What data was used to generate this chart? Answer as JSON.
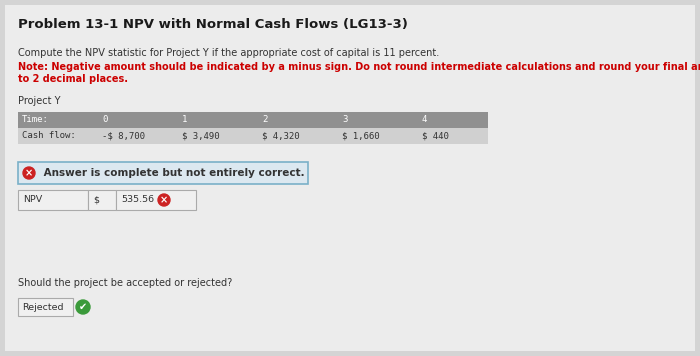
{
  "title": "Problem 13-1 NPV with Normal Cash Flows (LG13-3)",
  "body_text_1": "Compute the NPV statistic for Project Y if the appropriate cost of capital is 11 percent.",
  "note_line1": "Note: Negative amount should be indicated by a minus sign. Do not round intermediate calculations and round your final answer",
  "note_line2": "to 2 decimal places.",
  "project_label": "Project Y",
  "time_label": "Time:",
  "time_values": [
    "0",
    "1",
    "2",
    "3",
    "4"
  ],
  "cashflow_label": "Cash flow:",
  "cashflow_values": [
    "-$ 8,700",
    "$ 3,490",
    "$ 4,320",
    "$ 1,660",
    "$ 440"
  ],
  "answer_box_text": " Answer is complete but not entirely correct.",
  "npv_label": "NPV",
  "dollar_sign": "$",
  "npv_value": "535.56",
  "question_text": "Should the project be accepted or rejected?",
  "answer_label": "Rejected",
  "bg_color": "#d4d4d4",
  "content_bg": "#ececec",
  "table_header_bg": "#909090",
  "table_row_bg": "#d0d0d0",
  "answer_box_bg": "#dce8f0",
  "answer_box_border": "#7ab0c8",
  "npv_row_bg": "#f0f0f0",
  "npv_border": "#aaaaaa",
  "rejected_bg": "#f0f0f0",
  "rejected_border": "#aaaaaa",
  "title_color": "#1a1a1a",
  "note_color": "#cc0000",
  "body_color": "#333333",
  "white": "#ffffff",
  "title_fontsize": 9.5,
  "body_fontsize": 7.0,
  "table_fontsize": 6.5,
  "small_fontsize": 6.8
}
